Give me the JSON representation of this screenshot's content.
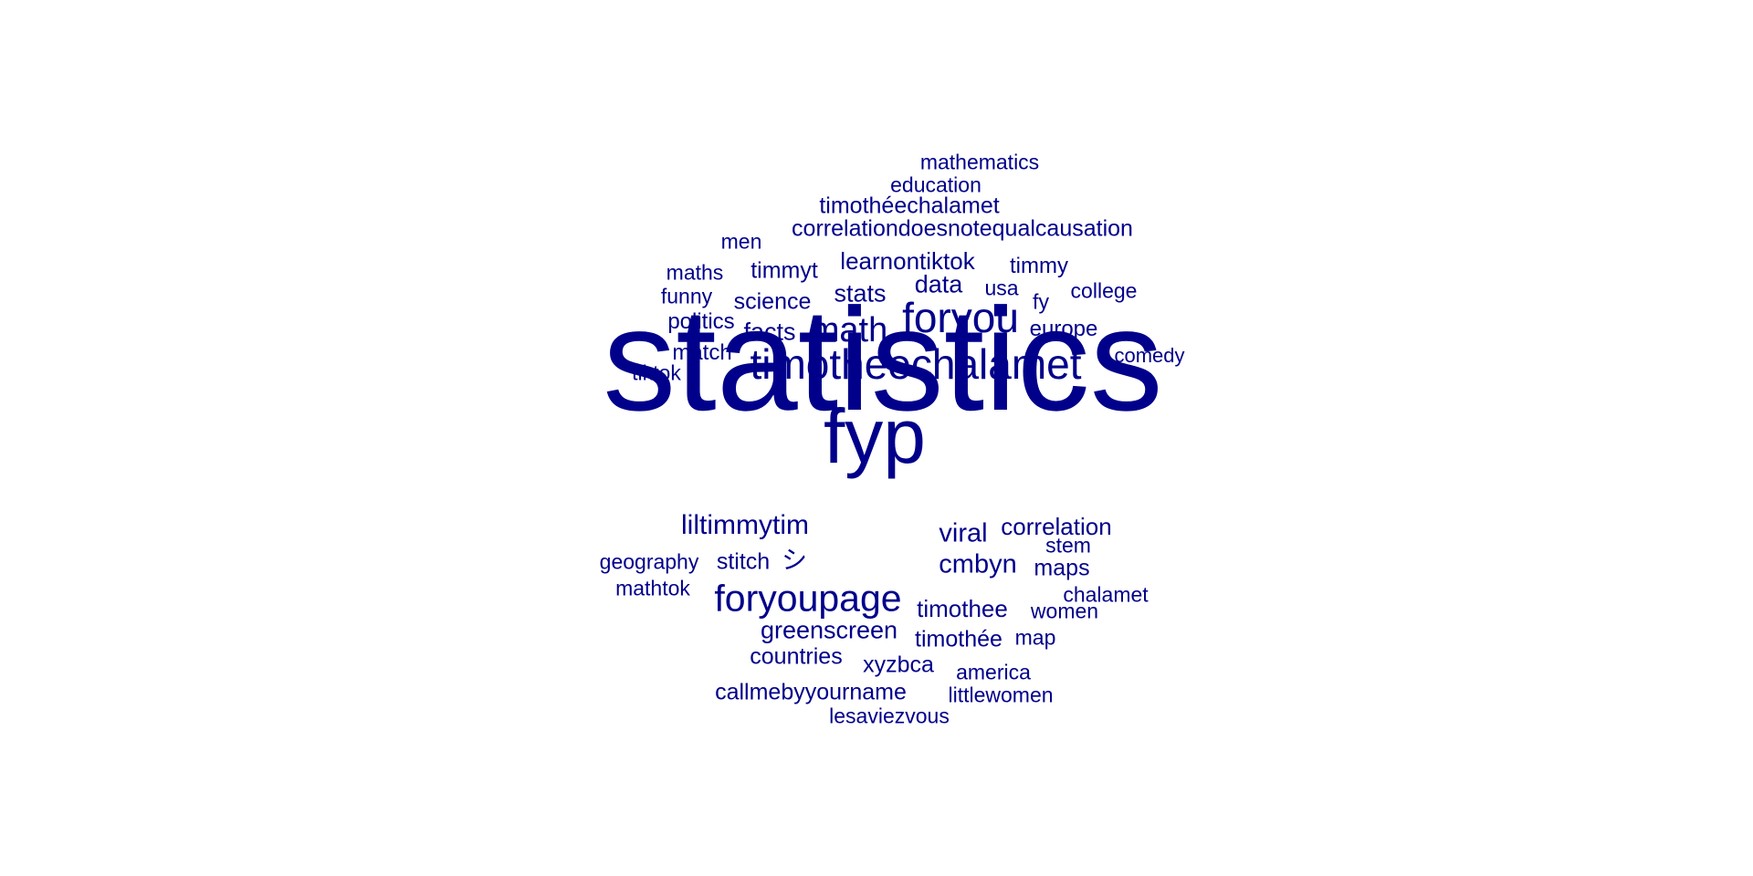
{
  "color": "#00008b",
  "words": [
    {
      "text": "statistics",
      "weight": 100
    },
    {
      "text": "fyp",
      "weight": 38
    },
    {
      "text": "timotheechalamet",
      "weight": 20
    },
    {
      "text": "foryou",
      "weight": 20
    },
    {
      "text": "foryoupage",
      "weight": 18
    },
    {
      "text": "math",
      "weight": 17
    },
    {
      "text": "liltimmytim",
      "weight": 13
    },
    {
      "text": "cmbyn",
      "weight": 12
    },
    {
      "text": "viral",
      "weight": 12
    },
    {
      "text": "greenscreen",
      "weight": 11
    },
    {
      "text": "stats",
      "weight": 11
    },
    {
      "text": "data",
      "weight": 11
    },
    {
      "text": "learnontiktok",
      "weight": 10
    },
    {
      "text": "facts",
      "weight": 10
    },
    {
      "text": "timothee",
      "weight": 10
    },
    {
      "text": "correlation",
      "weight": 10
    },
    {
      "text": "stitch",
      "weight": 9
    },
    {
      "text": "timmyt",
      "weight": 9
    },
    {
      "text": "science",
      "weight": 9
    },
    {
      "text": "timothée",
      "weight": 9
    },
    {
      "text": "xyzbca",
      "weight": 9
    },
    {
      "text": "countries",
      "weight": 9
    },
    {
      "text": "callmebyyourname",
      "weight": 9
    },
    {
      "text": "maps",
      "weight": 9
    },
    {
      "text": "shi",
      "weight": 9,
      "text_glyph": "シ"
    },
    {
      "text": "correlationdoesnotequalcausation",
      "weight": 9
    },
    {
      "text": "timothéechalamet",
      "weight": 9
    },
    {
      "text": "timmy",
      "weight": 8
    },
    {
      "text": "europe",
      "weight": 8
    },
    {
      "text": "match",
      "weight": 8
    },
    {
      "text": "politics",
      "weight": 8
    },
    {
      "text": "mathematics",
      "weight": 8
    },
    {
      "text": "education",
      "weight": 8
    },
    {
      "text": "geography",
      "weight": 8
    },
    {
      "text": "maths",
      "weight": 8
    },
    {
      "text": "college",
      "weight": 8
    },
    {
      "text": "america",
      "weight": 8
    },
    {
      "text": "littlewomen",
      "weight": 8
    },
    {
      "text": "women",
      "weight": 8
    },
    {
      "text": "chalamet",
      "weight": 8
    },
    {
      "text": "stem",
      "weight": 8
    },
    {
      "text": "map",
      "weight": 8
    },
    {
      "text": "usa",
      "weight": 8
    },
    {
      "text": "fy",
      "weight": 8
    },
    {
      "text": "funny",
      "weight": 8
    },
    {
      "text": "men",
      "weight": 8
    },
    {
      "text": "tiktok",
      "weight": 8
    },
    {
      "text": "mathtok",
      "weight": 8
    },
    {
      "text": "comedy",
      "weight": 8
    },
    {
      "text": "lesaviezvous",
      "weight": 8
    }
  ]
}
